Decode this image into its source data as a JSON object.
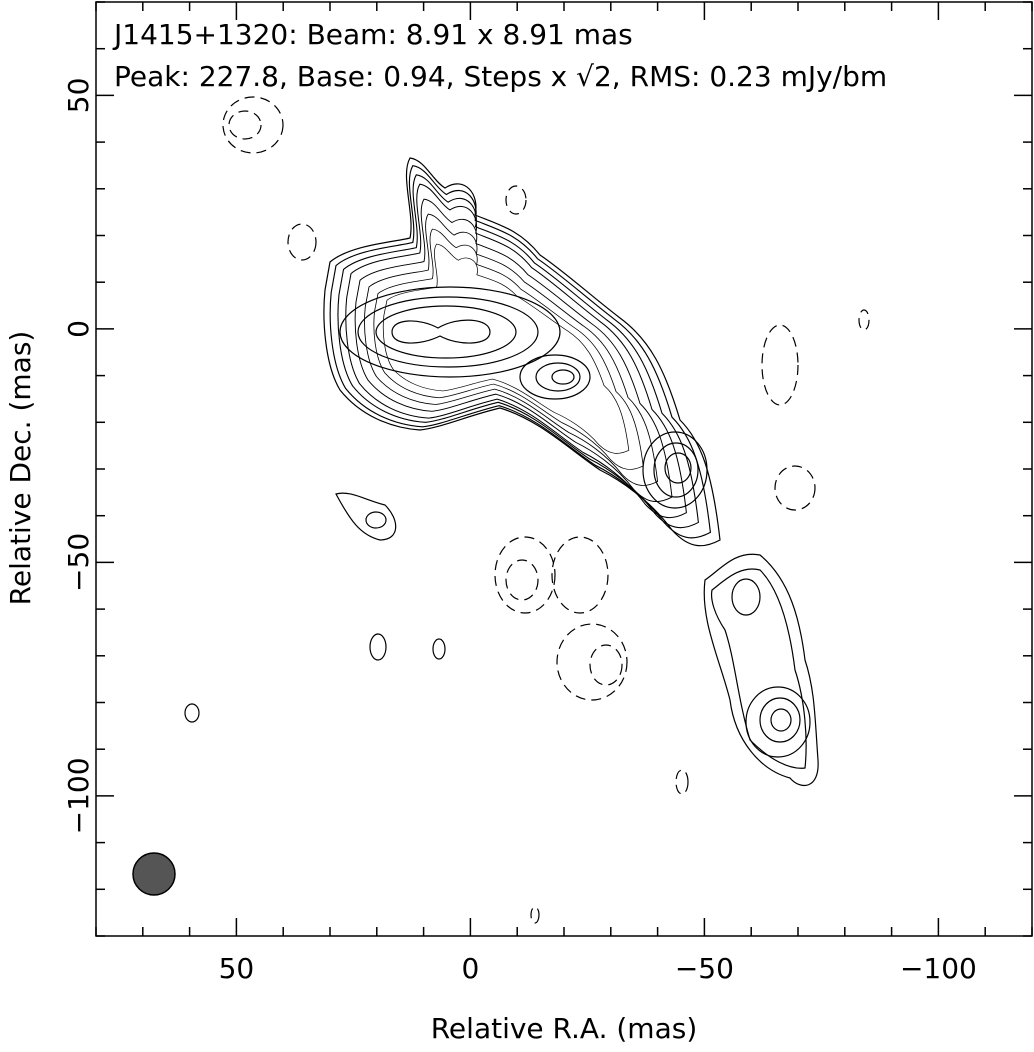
{
  "chart_data": {
    "type": "contour",
    "title": "J1415+1320: Beam: 8.91 x 8.91 mas",
    "subtitle": "Peak: 227.8, Base: 0.94, Steps x √2, RMS: 0.23 mJy/bm",
    "xlabel": "Relative R.A. (mas)",
    "ylabel": "Relative Dec. (mas)",
    "xlim": [
      80,
      -120
    ],
    "ylim": [
      -130,
      70
    ],
    "xticks": [
      50,
      0,
      {
        "value": -50,
        "label": "−50"
      },
      {
        "value": -100,
        "label": "−100"
      }
    ],
    "yticks": [
      50,
      0,
      {
        "value": -50,
        "label": "−50"
      },
      {
        "value": -100,
        "label": "−100"
      }
    ],
    "xminorticks": [
      80,
      70,
      60,
      40,
      30,
      20,
      10,
      -10,
      -20,
      -30,
      -40,
      -60,
      -70,
      -80,
      -90,
      -110,
      -120
    ],
    "yminorticks": [
      70,
      60,
      40,
      30,
      20,
      10,
      -10,
      -20,
      -30,
      -40,
      -60,
      -70,
      -80,
      -90,
      -110,
      -120,
      -130
    ],
    "grid": false
  }
}
